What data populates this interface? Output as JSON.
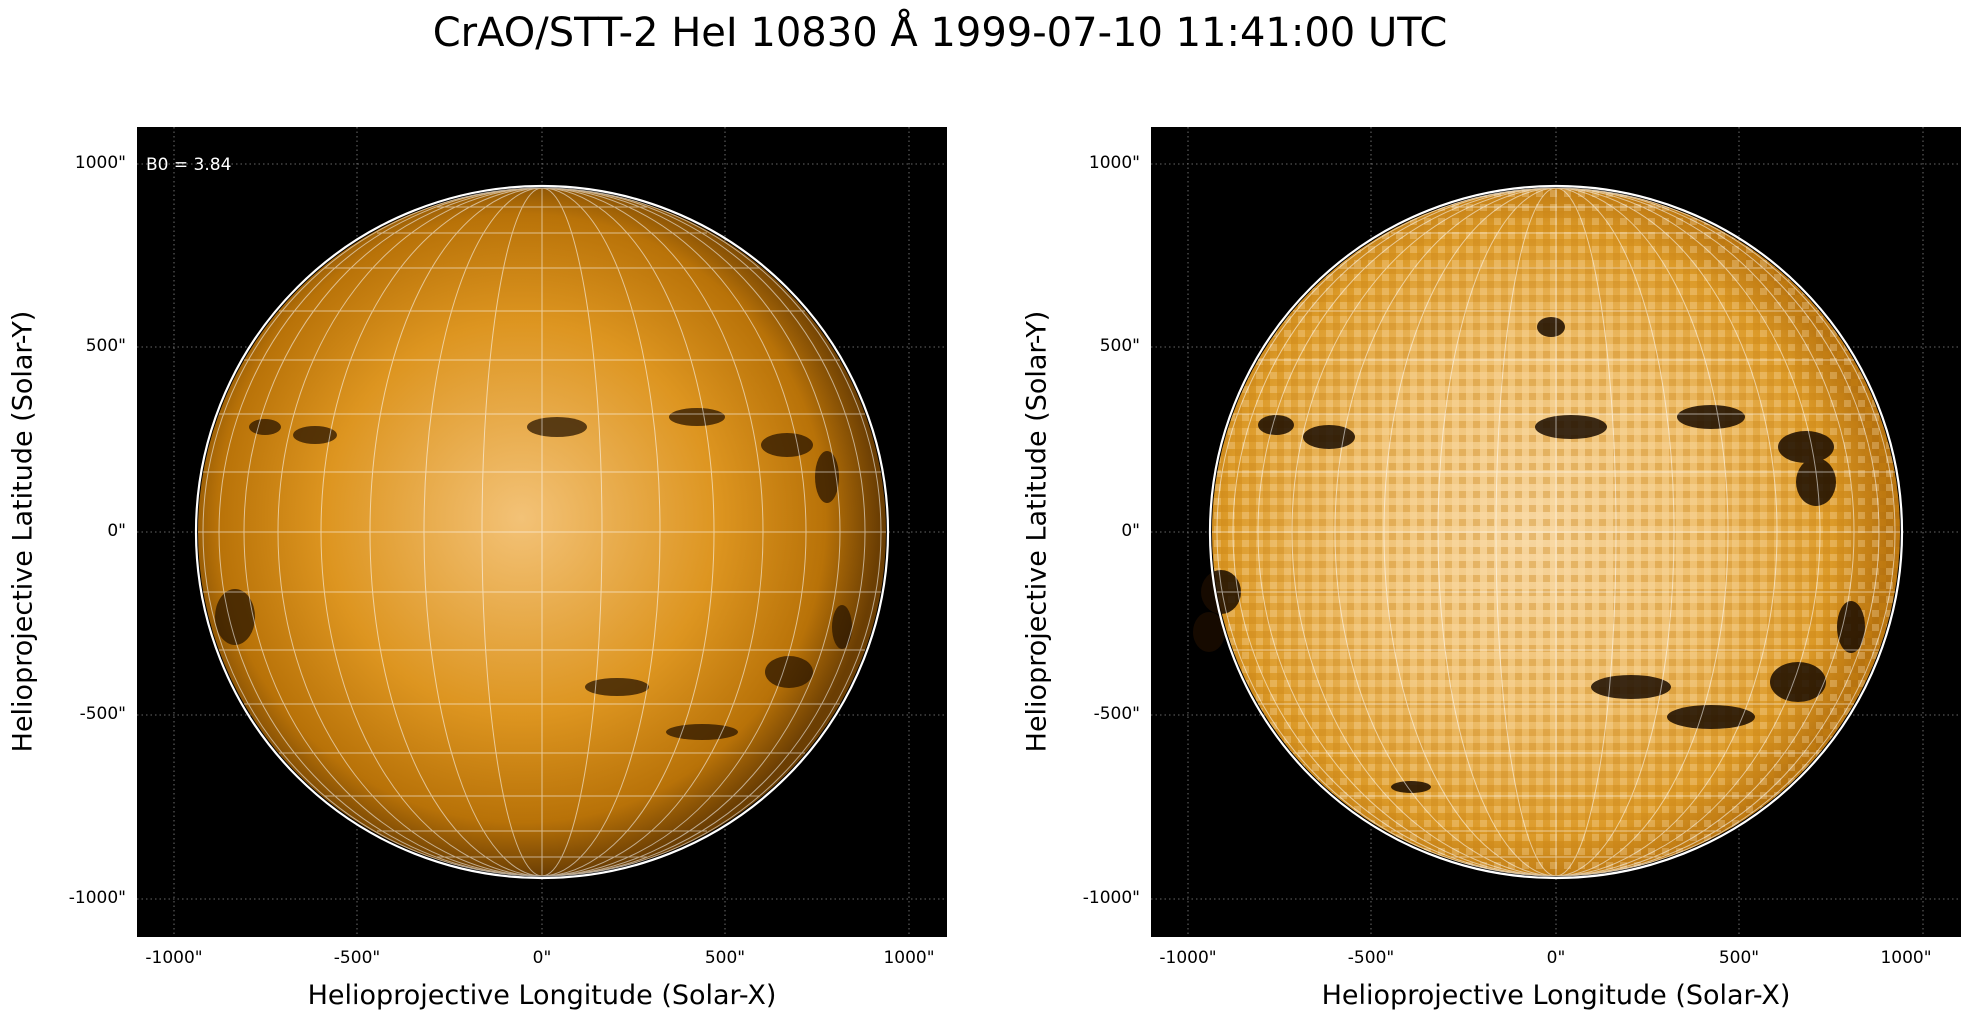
{
  "title": "CrAO/STT-2 HeI 10830 Å 1999-07-10 11:41:00 UTC",
  "panels": [
    {
      "x_axis_label": "Helioprojective Longitude (Solar-X)",
      "y_axis_label": "Helioprojective Latitude (Solar-Y)",
      "x_ticks": [
        "-1000\"",
        "-500\"",
        "0\"",
        "500\"",
        "1000\""
      ],
      "y_ticks": [
        "1000\"",
        "500\"",
        "0\"",
        "-500\"",
        "-1000\""
      ],
      "annotation": "B0 = 3.84"
    },
    {
      "x_axis_label": "Helioprojective Longitude (Solar-X)",
      "y_axis_label": "Helioprojective Latitude (Solar-Y)",
      "x_ticks": [
        "-1000\"",
        "-500\"",
        "0\"",
        "500\"",
        "1000\""
      ],
      "y_ticks": [
        "1000\"",
        "500\"",
        "0\"",
        "-500\"",
        "-1000\""
      ]
    }
  ],
  "colors": {
    "background": "#000000",
    "disk_bright": "#f3c277",
    "disk_mid": "#d08a12",
    "disk_limb": "#6b3e03",
    "grid": "#ffffff"
  }
}
